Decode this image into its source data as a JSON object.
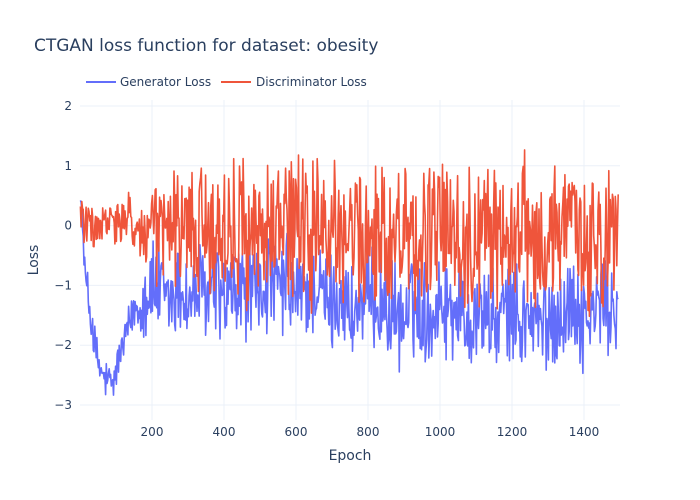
{
  "chart_data": {
    "type": "line",
    "title": "CTGAN loss function for dataset: obesity",
    "xlabel": "Epoch",
    "ylabel": "Loss",
    "xlim": [
      0,
      1500
    ],
    "ylim": [
      -3.25,
      2.1
    ],
    "xticks": [
      200,
      400,
      600,
      800,
      1000,
      1200,
      1400
    ],
    "yticks": [
      -3,
      -2,
      -1,
      0,
      1,
      2
    ],
    "grid": true,
    "legend_placement": "top-left, horizontal",
    "series": [
      {
        "name": "Generator Loss",
        "color": "#636efa",
        "x": [
          0,
          15,
          30,
          45,
          60,
          75,
          90,
          105,
          120,
          135,
          150,
          165,
          180,
          200,
          220,
          240,
          260,
          280,
          300,
          325,
          350,
          375,
          400,
          425,
          450,
          475,
          500,
          525,
          550,
          575,
          600,
          625,
          650,
          675,
          700,
          725,
          750,
          775,
          800,
          825,
          850,
          875,
          900,
          925,
          950,
          975,
          1000,
          1025,
          1050,
          1075,
          1100,
          1125,
          1150,
          1175,
          1200,
          1225,
          1250,
          1275,
          1300,
          1325,
          1350,
          1375,
          1400,
          1425,
          1450,
          1475,
          1495
        ],
        "values": [
          0.68,
          -0.9,
          -1.5,
          -2.2,
          -2.5,
          -2.6,
          -2.7,
          -2.3,
          -2.0,
          -1.7,
          -1.4,
          -1.3,
          -1.2,
          -1.0,
          -1.1,
          -1.3,
          -1.2,
          -1.0,
          -1.3,
          -1.1,
          -1.2,
          -1.0,
          -1.3,
          -1.2,
          -1.1,
          -1.0,
          -1.2,
          -0.9,
          -1.1,
          -1.0,
          -1.2,
          -1.1,
          -1.0,
          -1.2,
          -1.3,
          -1.1,
          -1.5,
          -1.4,
          -1.3,
          -1.2,
          -1.4,
          -1.5,
          -1.6,
          -1.3,
          -1.4,
          -1.5,
          -1.2,
          -1.4,
          -1.3,
          -1.6,
          -1.5,
          -1.4,
          -1.7,
          -1.5,
          -1.4,
          -1.6,
          -1.5,
          -1.7,
          -1.6,
          -1.5,
          -1.4,
          -1.3,
          -1.6,
          -1.5,
          -1.2,
          -1.4,
          -1.3
        ],
        "amplitude": [
          0.1,
          0.3,
          0.35,
          0.35,
          0.3,
          0.3,
          0.3,
          0.3,
          0.3,
          0.3,
          0.4,
          0.5,
          0.6,
          0.7,
          0.7,
          0.7,
          0.7,
          0.7,
          0.7,
          0.7,
          0.7,
          0.7,
          0.7,
          0.7,
          0.7,
          0.7,
          0.7,
          0.7,
          0.7,
          0.7,
          0.7,
          0.7,
          0.7,
          0.7,
          0.7,
          0.7,
          0.7,
          0.7,
          0.7,
          0.7,
          0.7,
          0.7,
          0.7,
          0.7,
          0.7,
          0.7,
          0.7,
          0.7,
          0.7,
          0.7,
          0.7,
          0.7,
          0.7,
          0.7,
          0.7,
          0.7,
          0.7,
          0.7,
          0.7,
          0.7,
          0.7,
          0.7,
          0.7,
          0.7,
          0.7,
          0.7,
          0.7
        ]
      },
      {
        "name": "Discriminator Loss",
        "color": "#ef553b",
        "x": [
          0,
          15,
          30,
          45,
          60,
          75,
          90,
          105,
          120,
          135,
          150,
          165,
          180,
          200,
          220,
          240,
          260,
          280,
          300,
          325,
          350,
          375,
          400,
          425,
          450,
          475,
          500,
          525,
          550,
          575,
          600,
          625,
          650,
          675,
          700,
          725,
          750,
          775,
          800,
          825,
          850,
          875,
          900,
          925,
          950,
          975,
          1000,
          1025,
          1050,
          1075,
          1100,
          1125,
          1150,
          1175,
          1200,
          1225,
          1250,
          1275,
          1300,
          1325,
          1350,
          1375,
          1400,
          1425,
          1450,
          1475,
          1495
        ],
        "values": [
          0.3,
          0.0,
          0.0,
          -0.1,
          0.0,
          0.0,
          0.1,
          0.0,
          0.0,
          0.1,
          0.0,
          -0.1,
          -0.2,
          -0.1,
          -0.2,
          0.0,
          -0.1,
          -0.2,
          0.0,
          -0.1,
          0.0,
          -0.1,
          -0.2,
          0.0,
          0.0,
          -0.1,
          -0.2,
          0.0,
          -0.1,
          -0.2,
          0.0,
          -0.1,
          -0.2,
          -0.3,
          0.0,
          -0.2,
          -0.1,
          0.0,
          -0.3,
          -0.2,
          -0.1,
          -0.2,
          0.0,
          -0.2,
          -0.3,
          -0.1,
          0.0,
          -0.2,
          -0.1,
          -0.2,
          -0.3,
          -0.1,
          -0.2,
          0.0,
          -0.2,
          -0.1,
          0.0,
          -0.2,
          -0.3,
          -0.1,
          -0.2,
          0.0,
          -0.2,
          -0.1,
          -0.3,
          -0.2,
          -0.1
        ],
        "amplitude": [
          0.3,
          0.3,
          0.3,
          0.3,
          0.3,
          0.3,
          0.3,
          0.35,
          0.35,
          0.35,
          0.4,
          0.5,
          0.6,
          0.7,
          0.8,
          0.8,
          0.8,
          0.8,
          0.8,
          0.9,
          0.9,
          0.9,
          0.9,
          1.0,
          1.0,
          1.0,
          1.0,
          1.0,
          1.0,
          1.0,
          1.0,
          1.0,
          1.0,
          1.0,
          1.0,
          1.0,
          1.0,
          1.0,
          1.0,
          1.0,
          1.0,
          1.0,
          1.0,
          1.0,
          1.0,
          1.0,
          1.0,
          1.0,
          1.0,
          1.0,
          1.0,
          1.0,
          1.0,
          1.0,
          1.0,
          1.0,
          1.0,
          1.0,
          1.0,
          1.0,
          1.0,
          1.0,
          1.0,
          1.0,
          1.0,
          1.0,
          1.0
        ]
      }
    ]
  }
}
